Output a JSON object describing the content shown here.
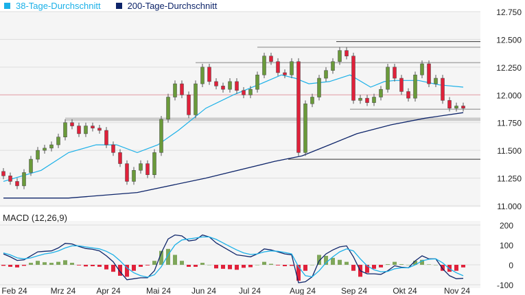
{
  "chart_data": {
    "type": "candlestick",
    "legend": [
      {
        "label": "38-Tage-Durchschnitt",
        "color": "#1ab0e8"
      },
      {
        "label": "200-Tage-Durchschnitt",
        "color": "#0d2469"
      }
    ],
    "price_axis": {
      "ylim": [
        11000,
        12750
      ],
      "ticks": [
        "12.750",
        "12.500",
        "12.250",
        "12.000",
        "11.750",
        "11.500",
        "11.250",
        "11.000"
      ],
      "tick_values": [
        12750,
        12500,
        12250,
        12000,
        11750,
        11500,
        11250,
        11000
      ]
    },
    "x_labels": [
      "Feb 24",
      "Mrz 24",
      "Apr 24",
      "Mai 24",
      "Jun 24",
      "Jul 24",
      "Aug 24",
      "Sep 24",
      "Okt 24",
      "Nov 24"
    ],
    "x_label_index": [
      1.5,
      8.7,
      15.3,
      22.6,
      29.2,
      35.9,
      43.6,
      51.1,
      58.5,
      66.1
    ],
    "close": [
      11270,
      11220,
      11180,
      11300,
      11420,
      11500,
      11520,
      11550,
      11620,
      11750,
      11720,
      11650,
      11720,
      11700,
      11680,
      11550,
      11480,
      11380,
      11220,
      11320,
      11380,
      11280,
      11480,
      11780,
      11980,
      12100,
      12000,
      11820,
      12100,
      12250,
      12120,
      12080,
      12050,
      12120,
      12040,
      12000,
      12050,
      12180,
      12350,
      12300,
      12200,
      12180,
      12300,
      11480,
      11920,
      11980,
      12150,
      12220,
      12300,
      12400,
      12350,
      11950,
      11970,
      11930,
      11980,
      12050,
      12250,
      12150,
      12030,
      11970,
      12180,
      12280,
      12100,
      12150,
      11950,
      11880,
      11900,
      11880
    ],
    "first_open": 11310,
    "ma38": [
      [
        0,
        11220
      ],
      [
        5.5,
        11320
      ],
      [
        9.5,
        11480
      ],
      [
        13.5,
        11550
      ],
      [
        16.5,
        11550
      ],
      [
        19.5,
        11480
      ],
      [
        22.5,
        11550
      ],
      [
        25.5,
        11680
      ],
      [
        29.5,
        11880
      ],
      [
        33.5,
        12000
      ],
      [
        37.5,
        12100
      ],
      [
        40.5,
        12180
      ],
      [
        42.5,
        12150
      ],
      [
        44.5,
        12100
      ],
      [
        47.5,
        12120
      ],
      [
        50.5,
        12180
      ],
      [
        53.5,
        12070
      ],
      [
        55.5,
        12120
      ],
      [
        57,
        12130
      ],
      [
        60.5,
        12130
      ],
      [
        63.5,
        12090
      ],
      [
        67,
        12070
      ]
    ],
    "ma200": [
      [
        0,
        11070
      ],
      [
        9.5,
        11070
      ],
      [
        19.5,
        11120
      ],
      [
        29.5,
        11250
      ],
      [
        39.5,
        11400
      ],
      [
        43.5,
        11450
      ],
      [
        47.5,
        11550
      ],
      [
        51.5,
        11650
      ],
      [
        56.5,
        11730
      ],
      [
        61.5,
        11790
      ],
      [
        67,
        11840
      ]
    ],
    "levels": [
      {
        "value": 12480,
        "from": 48.5,
        "color": "#333333",
        "width": 1
      },
      {
        "value": 12430,
        "from": 37,
        "color": "#aaaaaa",
        "width": 1.5
      },
      {
        "value": 12290,
        "from": 28,
        "color": "#aaaaaa",
        "width": 1.5
      },
      {
        "value": 12000,
        "from": -1,
        "color": "#e8a0a8",
        "width": 1
      },
      {
        "value": 11870,
        "from": 50.5,
        "color": "#aaaaaa",
        "width": 1.5
      },
      {
        "value": 11780,
        "from": 9,
        "color": "#cccccc",
        "width": 5
      },
      {
        "value": 11420,
        "from": 41.5,
        "color": "#333333",
        "width": 1
      }
    ],
    "macd": {
      "title": "MACD (12,26,9)",
      "ylim": [
        -110,
        210
      ],
      "ticks": [
        "200",
        "100",
        "0",
        "-100"
      ],
      "tick_values": [
        200,
        100,
        0,
        -100
      ],
      "macd": [
        55,
        40,
        22,
        25,
        45,
        65,
        68,
        70,
        85,
        108,
        105,
        92,
        82,
        78,
        70,
        45,
        15,
        -35,
        -75,
        -70,
        -65,
        -65,
        -30,
        60,
        130,
        150,
        145,
        120,
        125,
        150,
        140,
        110,
        90,
        70,
        50,
        45,
        40,
        55,
        80,
        75,
        65,
        55,
        50,
        -90,
        -85,
        -60,
        20,
        55,
        75,
        90,
        95,
        40,
        -30,
        -45,
        -45,
        -48,
        -30,
        -5,
        -12,
        -15,
        20,
        45,
        30,
        30,
        -20,
        -55,
        -70,
        -68
      ],
      "signal": [
        60,
        50,
        35,
        30,
        35,
        45,
        55,
        60,
        70,
        85,
        95,
        95,
        90,
        85,
        80,
        68,
        50,
        20,
        -15,
        -40,
        -55,
        -62,
        -50,
        -10,
        50,
        100,
        125,
        130,
        135,
        140,
        140,
        128,
        110,
        92,
        75,
        60,
        52,
        55,
        65,
        70,
        68,
        62,
        55,
        -10,
        -55,
        -60,
        -30,
        10,
        40,
        65,
        80,
        70,
        30,
        -5,
        -25,
        -35,
        -33,
        -20,
        -15,
        -15,
        0,
        20,
        28,
        30,
        10,
        -20,
        -40,
        -55
      ]
    }
  }
}
